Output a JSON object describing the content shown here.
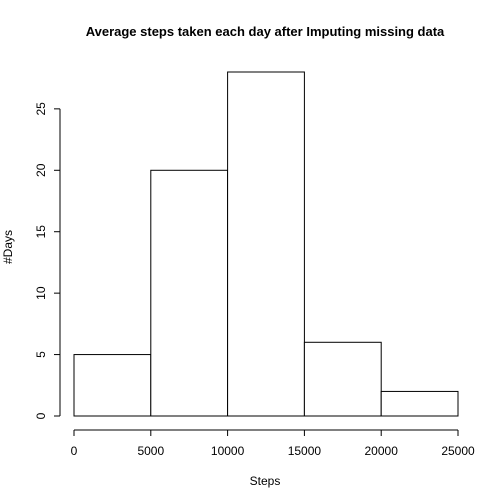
{
  "chart_data": {
    "type": "bar",
    "title": "Average steps taken each day after Imputing missing data",
    "xlabel": "Steps",
    "ylabel": "#Days",
    "bins": [
      {
        "from": 0,
        "to": 5000,
        "count": 5
      },
      {
        "from": 5000,
        "to": 10000,
        "count": 20
      },
      {
        "from": 10000,
        "to": 15000,
        "count": 28
      },
      {
        "from": 15000,
        "to": 20000,
        "count": 6
      },
      {
        "from": 20000,
        "to": 25000,
        "count": 2
      }
    ],
    "x_ticks": [
      0,
      5000,
      10000,
      15000,
      20000,
      25000
    ],
    "y_ticks": [
      0,
      5,
      10,
      15,
      20,
      25
    ],
    "xlim": [
      0,
      25000
    ],
    "ylim": [
      0,
      28
    ],
    "grid": false,
    "legend": "none"
  }
}
